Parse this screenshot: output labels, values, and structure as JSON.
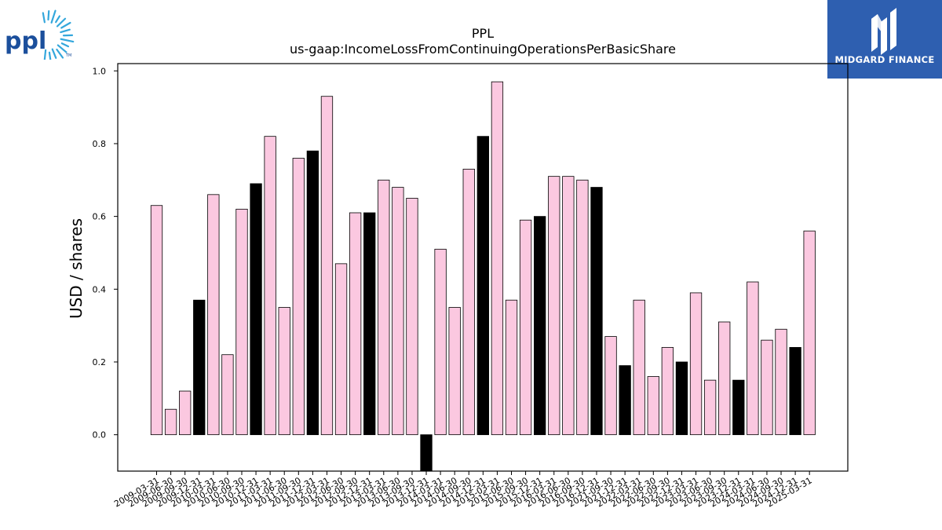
{
  "header": {
    "left_logo_text": "ppl",
    "left_logo_mark": "TM",
    "right_logo_text": "MIDGARD FINANCE"
  },
  "colors": {
    "bar_fill_default": "#fbc8e0",
    "bar_fill_annual": "#000000",
    "bar_stroke": "#000000",
    "ppl_blue": "#1b4f9c",
    "ppl_sun": "#34a7dc",
    "brand_bg": "#2e5fb0"
  },
  "chart_data": {
    "type": "bar",
    "title": "PPL",
    "subtitle": "us-gaap:IncomeLossFromContinuingOperationsPerBasicShare",
    "xlabel": "",
    "ylabel": "USD / shares",
    "ylim": [
      -0.1,
      1.02
    ],
    "yticks": [
      "0.0",
      "0.2",
      "0.4",
      "0.6",
      "0.8",
      "1.0"
    ],
    "grid": false,
    "categories": [
      "2009-03-31",
      "2009-06-30",
      "2009-09-30",
      "2009-12-31",
      "2010-03-31",
      "2010-06-30",
      "2010-09-30",
      "2010-12-31",
      "2011-03-31",
      "2011-06-30",
      "2011-09-30",
      "2011-12-31",
      "2012-03-31",
      "2012-06-30",
      "2012-09-30",
      "2012-12-31",
      "2013-03-31",
      "2013-06-30",
      "2013-09-30",
      "2013-12-31",
      "2014-03-31",
      "2014-06-30",
      "2014-09-30",
      "2014-12-31",
      "2015-03-31",
      "2015-06-30",
      "2015-09-30",
      "2015-12-31",
      "2016-03-31",
      "2016-06-30",
      "2016-09-30",
      "2016-12-31",
      "2021-09-30",
      "2021-12-31",
      "2022-03-31",
      "2022-06-30",
      "2022-09-30",
      "2022-12-31",
      "2023-03-31",
      "2023-06-30",
      "2023-09-30",
      "2023-12-31",
      "2024-03-31",
      "2024-06-30",
      "2024-09-30",
      "2024-12-31",
      "2025-03-31"
    ],
    "tick_labels": [
      "2009-03-31",
      "2009-06-30",
      "2009-09-30",
      "2009-12-31",
      "2010-03-31",
      "2010-06-30",
      "2010-09-30",
      "2010-12-31",
      "2011-03-31",
      "2011-06-30",
      "2011-09-30",
      "2011-12-31",
      "2012-03-31",
      "2012-06-30",
      "2012-09-30",
      "2012-12-31",
      "2013-03-31",
      "2013-06-30",
      "2013-09-30",
      "2013-12-31",
      "2014-03-31",
      "2014-06-30",
      "2014-09-30",
      "2014-12-31",
      "2015-03-31",
      "2015-06-30",
      "2015-09-30",
      "2015-12-31",
      "2016-03-31",
      "2016-06-30",
      "2016-09-30",
      "2016-12-31",
      "2021-09-30",
      "2021-12-31",
      "2022-03-31",
      "2022-06-30",
      "2022-09-30",
      "2022-12-31",
      "2023-03-31",
      "2023-06-30",
      "2023-09-30",
      "2023-12-31",
      "2024-03-31",
      "2024-06-30",
      "2024-09-30",
      "2024-12-31",
      "2025-03-31"
    ],
    "values": [
      0.63,
      0.07,
      0.12,
      0.37,
      0.66,
      0.22,
      0.62,
      0.69,
      0.82,
      0.35,
      0.76,
      0.78,
      0.93,
      0.47,
      0.61,
      0.61,
      0.7,
      0.68,
      0.65,
      -0.1,
      0.51,
      0.35,
      0.73,
      0.82,
      0.97,
      0.37,
      0.59,
      0.6,
      0.71,
      0.71,
      0.7,
      0.68,
      0.27,
      0.19,
      0.37,
      0.16,
      0.24,
      0.2,
      0.39,
      0.15,
      0.31,
      0.15,
      0.42,
      0.26,
      0.29,
      0.24,
      0.56
    ],
    "highlight": [
      false,
      false,
      false,
      true,
      false,
      false,
      false,
      true,
      false,
      false,
      false,
      true,
      false,
      false,
      false,
      true,
      false,
      false,
      false,
      true,
      false,
      false,
      false,
      true,
      false,
      false,
      false,
      true,
      false,
      false,
      false,
      true,
      false,
      true,
      false,
      false,
      false,
      true,
      false,
      false,
      false,
      true,
      false,
      false,
      false,
      true,
      false
    ]
  }
}
